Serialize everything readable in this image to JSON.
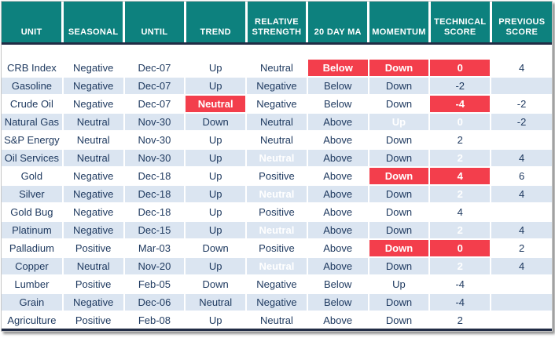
{
  "colors": {
    "header_bg": "#0d817e",
    "header_text": "#ffffff",
    "stripe_blue": "#dbe5f1",
    "row_white": "#ffffff",
    "text_navy": "#1f3a60",
    "highlight_red": "#f33e4c",
    "highlight_green": "#92d050",
    "dark_line": "#212c45"
  },
  "table": {
    "headers": [
      {
        "id": "unit",
        "label": "UNIT"
      },
      {
        "id": "seasonal",
        "label": "SEASONAL"
      },
      {
        "id": "until",
        "label": "UNTIL"
      },
      {
        "id": "trend",
        "label": "TREND"
      },
      {
        "id": "relative-strength",
        "label": "RELATIVE STRENGTH"
      },
      {
        "id": "20-day-ma",
        "label": "20 DAY MA"
      },
      {
        "id": "momentum",
        "label": "MOMENTUM"
      },
      {
        "id": "technical-score",
        "label": "TECHNICAL SCORE"
      },
      {
        "id": "previous-score",
        "label": "PREVIOUS SCORE"
      }
    ],
    "rows": [
      {
        "cells": [
          {
            "text": "CRB Index"
          },
          {
            "text": "Negative"
          },
          {
            "text": "Dec-07"
          },
          {
            "text": "Up"
          },
          {
            "text": "Neutral"
          },
          {
            "text": "Below",
            "variant": "red"
          },
          {
            "text": "Down",
            "variant": "red"
          },
          {
            "text": "0",
            "variant": "red"
          },
          {
            "text": "4"
          }
        ]
      },
      {
        "cells": [
          {
            "text": "Gasoline"
          },
          {
            "text": "Negative"
          },
          {
            "text": "Dec-07"
          },
          {
            "text": "Up"
          },
          {
            "text": "Negative"
          },
          {
            "text": "Below"
          },
          {
            "text": "Down"
          },
          {
            "text": "-2"
          },
          {
            "text": ""
          }
        ]
      },
      {
        "cells": [
          {
            "text": "Crude Oil"
          },
          {
            "text": "Negative"
          },
          {
            "text": "Dec-07"
          },
          {
            "text": "Neutral",
            "variant": "red"
          },
          {
            "text": "Negative"
          },
          {
            "text": "Below"
          },
          {
            "text": "Down"
          },
          {
            "text": "-4",
            "variant": "red"
          },
          {
            "text": "-2"
          }
        ]
      },
      {
        "cells": [
          {
            "text": "Natural Gas"
          },
          {
            "text": "Neutral"
          },
          {
            "text": "Nov-30"
          },
          {
            "text": "Down"
          },
          {
            "text": "Neutral"
          },
          {
            "text": "Above"
          },
          {
            "text": "Up",
            "variant": "green"
          },
          {
            "text": "0",
            "variant": "green"
          },
          {
            "text": "-2"
          }
        ]
      },
      {
        "cells": [
          {
            "text": "S&P Energy"
          },
          {
            "text": "Neutral"
          },
          {
            "text": "Nov-30"
          },
          {
            "text": "Up"
          },
          {
            "text": "Neutral"
          },
          {
            "text": "Above"
          },
          {
            "text": "Down"
          },
          {
            "text": "2"
          },
          {
            "text": ""
          }
        ]
      },
      {
        "cells": [
          {
            "text": "Oil Services"
          },
          {
            "text": "Neutral"
          },
          {
            "text": "Nov-30"
          },
          {
            "text": "Up"
          },
          {
            "text": "Neutral",
            "variant": "red"
          },
          {
            "text": "Above"
          },
          {
            "text": "Down"
          },
          {
            "text": "2",
            "variant": "red"
          },
          {
            "text": "4"
          }
        ]
      },
      {
        "cells": [
          {
            "text": "Gold"
          },
          {
            "text": "Negative"
          },
          {
            "text": "Dec-18"
          },
          {
            "text": "Up"
          },
          {
            "text": "Positive"
          },
          {
            "text": "Above"
          },
          {
            "text": "Down",
            "variant": "red"
          },
          {
            "text": "4",
            "variant": "red"
          },
          {
            "text": "6"
          }
        ]
      },
      {
        "cells": [
          {
            "text": "Silver"
          },
          {
            "text": "Negative"
          },
          {
            "text": "Dec-18"
          },
          {
            "text": "Up"
          },
          {
            "text": "Neutral",
            "variant": "red"
          },
          {
            "text": "Above"
          },
          {
            "text": "Down"
          },
          {
            "text": "2",
            "variant": "red"
          },
          {
            "text": "4"
          }
        ]
      },
      {
        "cells": [
          {
            "text": "Gold Bug"
          },
          {
            "text": "Negative"
          },
          {
            "text": "Dec-18"
          },
          {
            "text": "Up"
          },
          {
            "text": "Positive"
          },
          {
            "text": "Above"
          },
          {
            "text": "Down"
          },
          {
            "text": "4"
          },
          {
            "text": ""
          }
        ]
      },
      {
        "cells": [
          {
            "text": "Platinum"
          },
          {
            "text": "Negative"
          },
          {
            "text": "Dec-15"
          },
          {
            "text": "Up"
          },
          {
            "text": "Neutral",
            "variant": "red"
          },
          {
            "text": "Above"
          },
          {
            "text": "Down"
          },
          {
            "text": "2",
            "variant": "red"
          },
          {
            "text": "4"
          }
        ]
      },
      {
        "cells": [
          {
            "text": "Palladium"
          },
          {
            "text": "Positive"
          },
          {
            "text": "Mar-03"
          },
          {
            "text": "Down"
          },
          {
            "text": "Positive"
          },
          {
            "text": "Above"
          },
          {
            "text": "Down",
            "variant": "red"
          },
          {
            "text": "0",
            "variant": "red"
          },
          {
            "text": "2"
          }
        ]
      },
      {
        "cells": [
          {
            "text": "Copper"
          },
          {
            "text": "Neutral"
          },
          {
            "text": "Nov-20"
          },
          {
            "text": "Up"
          },
          {
            "text": "Neutral",
            "variant": "red"
          },
          {
            "text": "Above"
          },
          {
            "text": "Down"
          },
          {
            "text": "2",
            "variant": "red"
          },
          {
            "text": "4"
          }
        ]
      },
      {
        "cells": [
          {
            "text": "Lumber"
          },
          {
            "text": "Positive"
          },
          {
            "text": "Feb-05"
          },
          {
            "text": "Down"
          },
          {
            "text": "Negative"
          },
          {
            "text": "Below"
          },
          {
            "text": "Up"
          },
          {
            "text": "-4"
          },
          {
            "text": ""
          }
        ]
      },
      {
        "cells": [
          {
            "text": "Grain"
          },
          {
            "text": "Negative"
          },
          {
            "text": "Dec-06"
          },
          {
            "text": "Neutral"
          },
          {
            "text": "Negative"
          },
          {
            "text": "Below"
          },
          {
            "text": "Down"
          },
          {
            "text": "-4"
          },
          {
            "text": ""
          }
        ]
      },
      {
        "cells": [
          {
            "text": "Agriculture"
          },
          {
            "text": "Positive"
          },
          {
            "text": "Feb-08"
          },
          {
            "text": "Up"
          },
          {
            "text": "Neutral"
          },
          {
            "text": "Above"
          },
          {
            "text": "Down"
          },
          {
            "text": "2"
          },
          {
            "text": ""
          }
        ]
      }
    ]
  }
}
